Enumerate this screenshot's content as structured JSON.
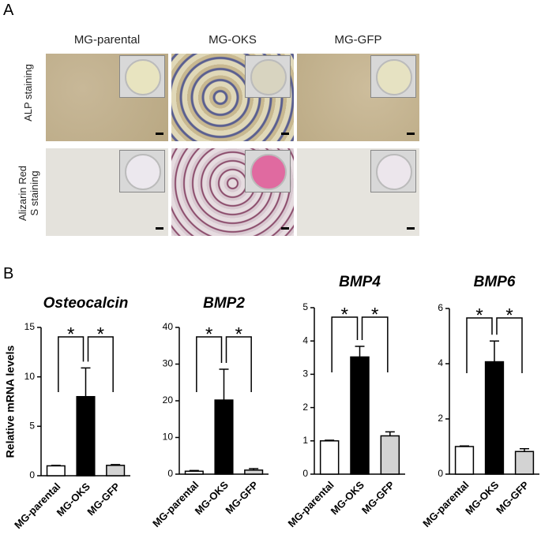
{
  "panel_labels": [
    "A",
    "B"
  ],
  "micrographs": {
    "columns": [
      "MG-parental",
      "MG-OKS",
      "MG-GFP"
    ],
    "rows": [
      "ALP staining",
      "Alizarin Red S staining"
    ]
  },
  "chart_data": [
    {
      "type": "bar",
      "title": "Osteocalcin",
      "ylabel": "Relative mRNA levels",
      "categories": [
        "MG-parental",
        "MG-OKS",
        "MG-GFP"
      ],
      "values": [
        1,
        8,
        1.05
      ],
      "errors": [
        0.05,
        2.9,
        0.08
      ],
      "colors": [
        "#ffffff",
        "#000000",
        "#d3d3d3"
      ],
      "ylim": [
        0,
        15
      ],
      "yticks": [
        0,
        5,
        10,
        15
      ],
      "annotations": [
        "*",
        "*"
      ]
    },
    {
      "type": "bar",
      "title": "BMP2",
      "categories": [
        "MG-parental",
        "MG-OKS",
        "MG-GFP"
      ],
      "values": [
        0.8,
        20.2,
        1.1
      ],
      "errors": [
        0.2,
        8.4,
        0.4
      ],
      "colors": [
        "#ffffff",
        "#000000",
        "#d3d3d3"
      ],
      "ylim": [
        0,
        40
      ],
      "yticks": [
        0,
        10,
        20,
        30,
        40
      ],
      "annotations": [
        "*",
        "*"
      ]
    },
    {
      "type": "bar",
      "title": "BMP4",
      "categories": [
        "MG-parental",
        "MG-OKS",
        "MG-GFP"
      ],
      "values": [
        1.0,
        3.52,
        1.15
      ],
      "errors": [
        0.02,
        0.32,
        0.12
      ],
      "colors": [
        "#ffffff",
        "#000000",
        "#d3d3d3"
      ],
      "ylim": [
        0,
        5
      ],
      "yticks": [
        0,
        1,
        2,
        3,
        4,
        5
      ],
      "annotations": [
        "*",
        "*"
      ]
    },
    {
      "type": "bar",
      "title": "BMP6",
      "categories": [
        "MG-parental",
        "MG-OKS",
        "MG-GFP"
      ],
      "values": [
        1.0,
        4.07,
        0.82
      ],
      "errors": [
        0.02,
        0.75,
        0.1
      ],
      "colors": [
        "#ffffff",
        "#000000",
        "#d3d3d3"
      ],
      "ylim": [
        0,
        6
      ],
      "yticks": [
        0,
        2,
        4,
        6
      ],
      "annotations": [
        "*",
        "*"
      ]
    }
  ]
}
